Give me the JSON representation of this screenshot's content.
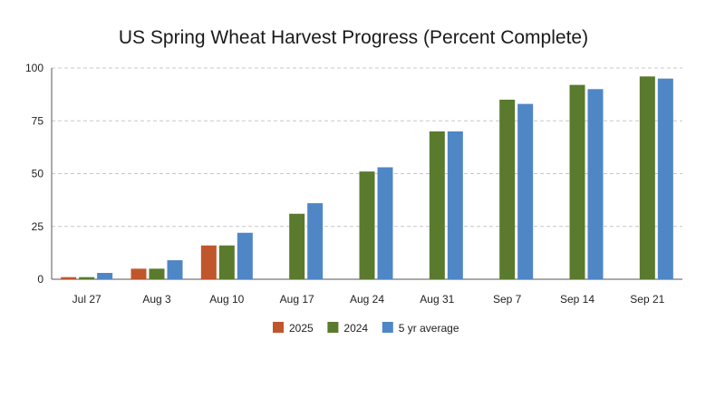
{
  "chart_data": {
    "type": "bar",
    "title": "US Spring Wheat Harvest Progress (Percent Complete)",
    "xlabel": "",
    "ylabel": "",
    "categories": [
      "Jul 27",
      "Aug 3",
      "Aug 10",
      "Aug 17",
      "Aug 24",
      "Aug 31",
      "Sep 7",
      "Sep 14",
      "Sep 21"
    ],
    "series": [
      {
        "name": "2025",
        "color": "#c0562b",
        "values": [
          1,
          5,
          16,
          null,
          null,
          null,
          null,
          null,
          null
        ]
      },
      {
        "name": "2024",
        "color": "#5a7a2e",
        "values": [
          1,
          5,
          16,
          31,
          51,
          70,
          85,
          92,
          96
        ]
      },
      {
        "name": "5 yr average",
        "color": "#4f86c6",
        "values": [
          3,
          9,
          22,
          36,
          53,
          70,
          83,
          90,
          95
        ]
      }
    ],
    "ylim": [
      0,
      100
    ],
    "yticks": [
      0,
      25,
      50,
      75,
      100
    ],
    "grid": true,
    "legend_position": "bottom"
  }
}
